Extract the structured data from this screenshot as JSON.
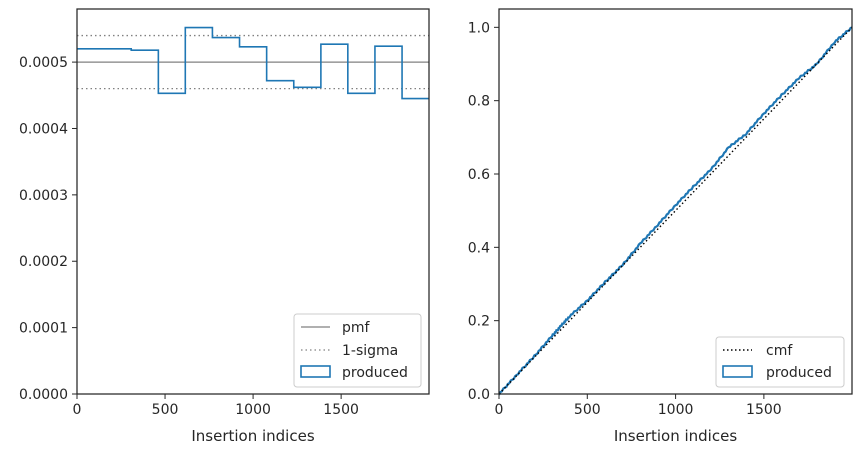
{
  "chart_data": [
    {
      "type": "histogram-step",
      "xlabel": "Insertion indices",
      "ylabel": "",
      "xlim": [
        0,
        1999
      ],
      "ylim": [
        0,
        0.00058
      ],
      "xticks": [
        0,
        500,
        1000,
        1500
      ],
      "yticks": [
        0,
        0.0001,
        0.0002,
        0.0003,
        0.0004,
        0.0005
      ],
      "ytick_labels": [
        "0.0000",
        "0.0001",
        "0.0002",
        "0.0003",
        "0.0004",
        "0.0005"
      ],
      "xtick_labels": [
        "0",
        "500",
        "1000",
        "1500"
      ],
      "grid": false,
      "legend_position": "lower-right",
      "pmf": 0.0005,
      "sigma_upper": 0.00054,
      "sigma_lower": 0.00046,
      "bin_edges": [
        0,
        308,
        462,
        615,
        769,
        923,
        1077,
        1231,
        1385,
        1538,
        1692,
        1846,
        1999
      ],
      "bin_values": [
        0.00052,
        0.000518,
        0.000453,
        0.000552,
        0.000537,
        0.000523,
        0.000472,
        0.000462,
        0.000527,
        0.000453,
        0.000524,
        0.000445
      ],
      "series": [
        {
          "name": "pmf",
          "color": "#808080",
          "style": "solid"
        },
        {
          "name": "1-sigma",
          "color": "#808080",
          "style": "dotted"
        },
        {
          "name": "produced",
          "color": "#1f77b4",
          "style": "step"
        }
      ]
    },
    {
      "type": "line",
      "xlabel": "Insertion indices",
      "ylabel": "",
      "xlim": [
        0,
        1999
      ],
      "ylim": [
        0,
        1.05
      ],
      "xticks": [
        0,
        500,
        1000,
        1500
      ],
      "yticks": [
        0,
        0.2,
        0.4,
        0.6,
        0.8,
        1.0
      ],
      "ytick_labels": [
        "0.0",
        "0.2",
        "0.4",
        "0.6",
        "0.8",
        "1.0"
      ],
      "xtick_labels": [
        "0",
        "500",
        "1000",
        "1500"
      ],
      "grid": false,
      "legend_position": "lower-right",
      "cmf_x": [
        0,
        1999
      ],
      "cmf_y": [
        0,
        1.0
      ],
      "produced_x": [
        0,
        100,
        200,
        300,
        350,
        400,
        500,
        600,
        700,
        800,
        900,
        1000,
        1100,
        1200,
        1300,
        1400,
        1500,
        1600,
        1700,
        1800,
        1900,
        1999
      ],
      "produced_y": [
        0,
        0.052,
        0.103,
        0.158,
        0.185,
        0.212,
        0.255,
        0.305,
        0.352,
        0.41,
        0.462,
        0.515,
        0.565,
        0.612,
        0.672,
        0.71,
        0.765,
        0.815,
        0.862,
        0.9,
        0.96,
        1.0
      ],
      "series": [
        {
          "name": "cmf",
          "color": "#000000",
          "style": "dotted"
        },
        {
          "name": "produced",
          "color": "#1f77b4",
          "style": "solid"
        }
      ]
    }
  ]
}
